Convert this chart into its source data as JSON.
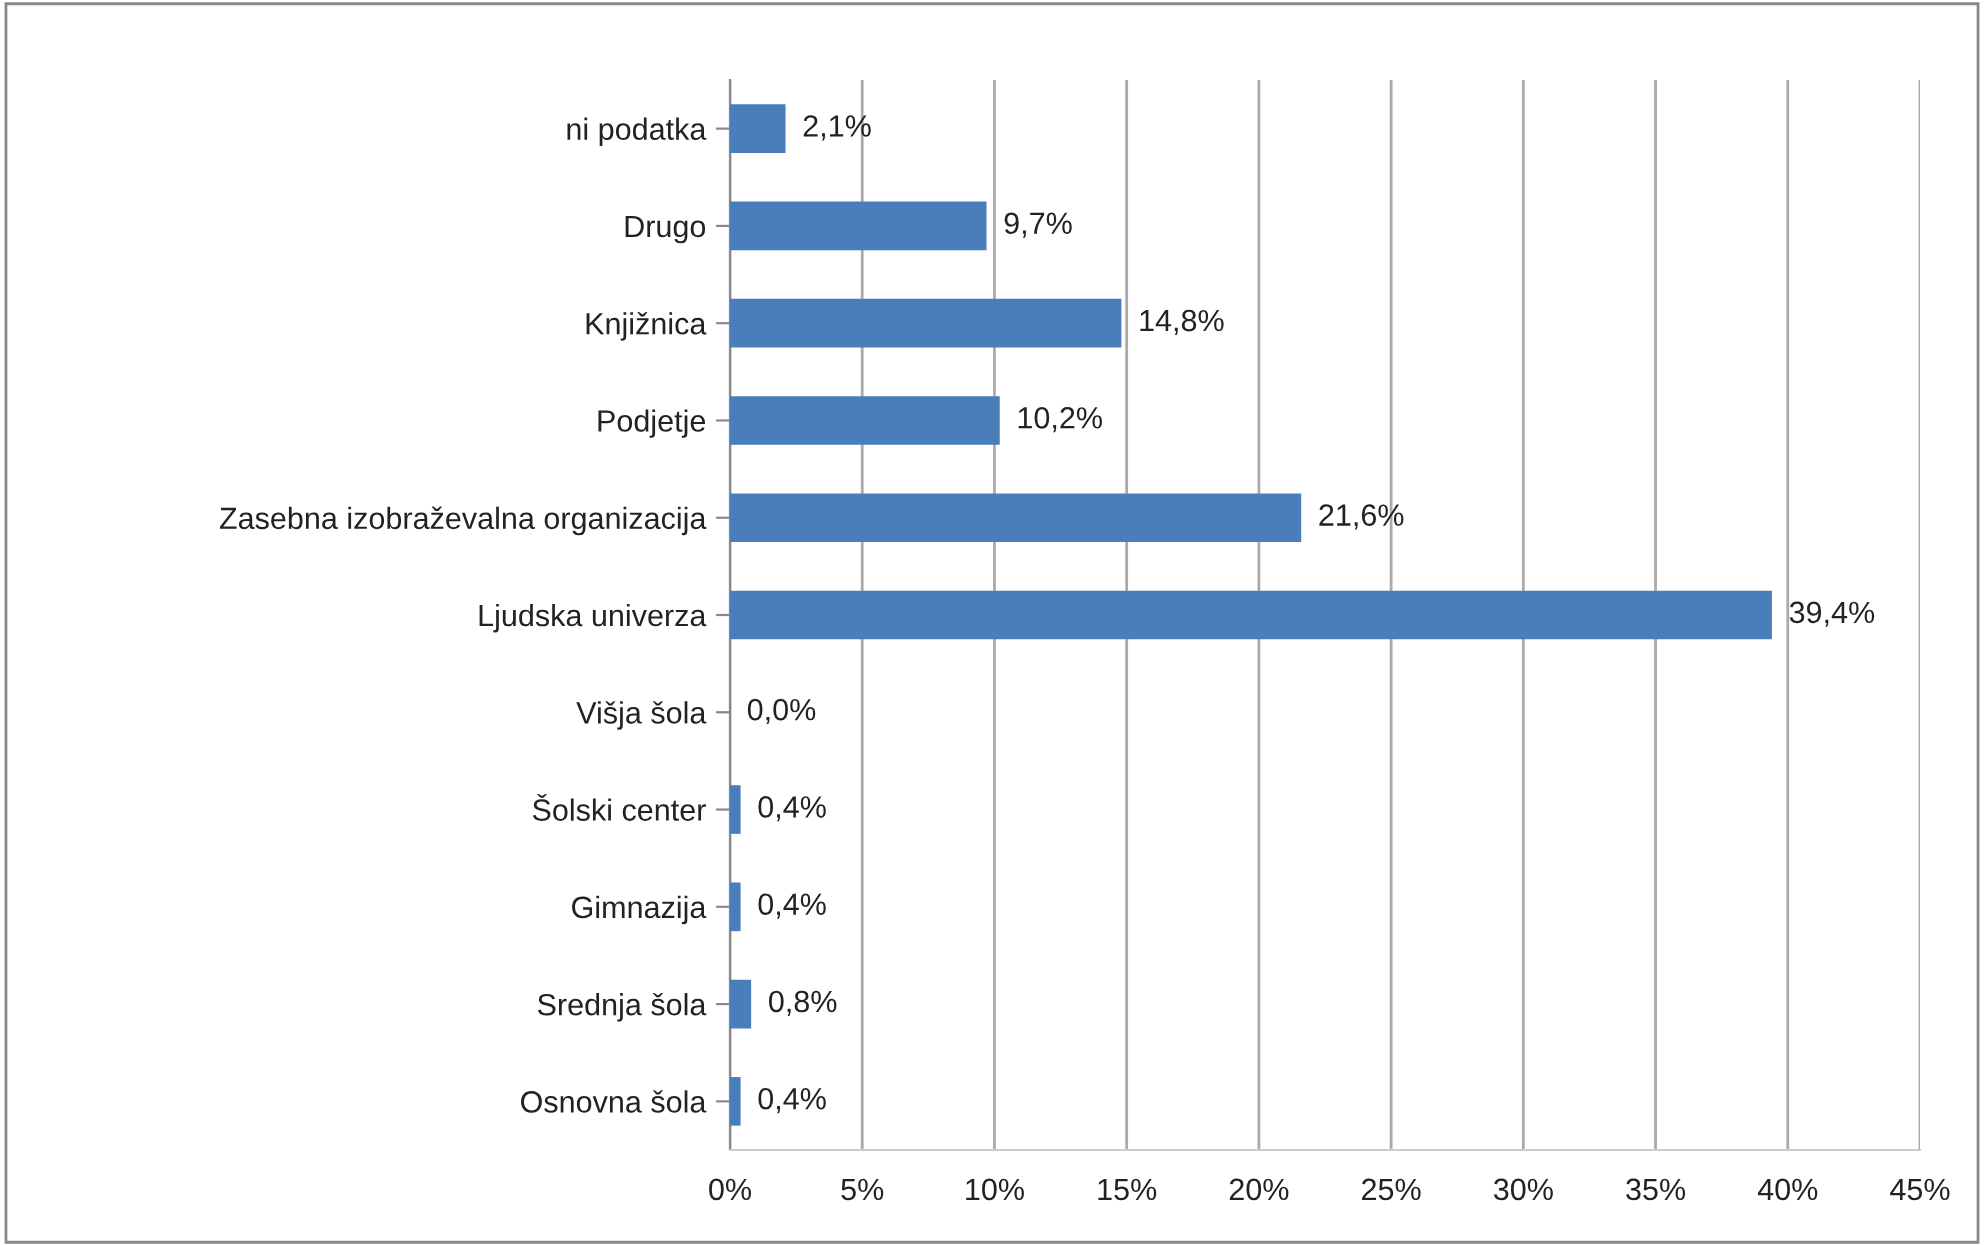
{
  "chart_data": {
    "type": "bar",
    "orientation": "horizontal",
    "categories": [
      "ni podatka",
      "Drugo",
      "Knjižnica",
      "Podjetje",
      "Zasebna izobraževalna organizacija",
      "Ljudska univerza",
      "Višja šola",
      "Šolski center",
      "Gimnazija",
      "Srednja šola",
      "Osnovna šola"
    ],
    "values": [
      2.1,
      9.7,
      14.8,
      10.2,
      21.6,
      39.4,
      0.0,
      0.4,
      0.4,
      0.8,
      0.4
    ],
    "value_labels": [
      "2,1%",
      "9,7%",
      "14,8%",
      "10,2%",
      "21,6%",
      "39,4%",
      "0,0%",
      "0,4%",
      "0,4%",
      "0,8%",
      "0,4%"
    ],
    "color": "#4a7ebb",
    "xlim": [
      0,
      45
    ],
    "xticks": [
      {
        "value": 0,
        "label": "0%"
      },
      {
        "value": 5,
        "label": "5%"
      },
      {
        "value": 10,
        "label": "10%"
      },
      {
        "value": 15,
        "label": "15%"
      },
      {
        "value": 20,
        "label": "20%"
      },
      {
        "value": 25,
        "label": "25%"
      },
      {
        "value": 30,
        "label": "30%"
      },
      {
        "value": 35,
        "label": "35%"
      },
      {
        "value": 40,
        "label": "40%"
      },
      {
        "value": 45,
        "label": "45%"
      }
    ],
    "grid": "x"
  }
}
